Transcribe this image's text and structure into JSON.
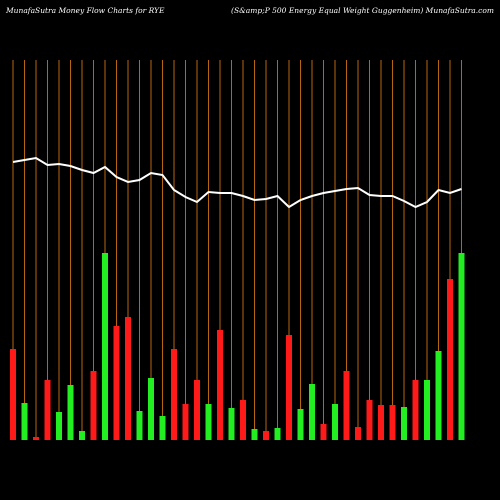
{
  "chart_data": {
    "type": "bar",
    "title": "MunafaSutra  Money Flow  Charts for RYE",
    "subtitle": "(S&amp;P 500  Energy Equal Weight Guggenheim) MunafaSutra.com",
    "ylim": [
      0,
      300
    ],
    "grid": true,
    "grid_color": "#b8650f",
    "series": [
      {
        "name": "money flow",
        "type": "bar",
        "values": [
          91,
          37,
          3,
          60,
          28,
          55,
          9,
          69,
          187,
          114,
          123,
          29,
          62,
          24,
          91,
          36,
          60,
          36,
          110,
          32,
          40,
          11,
          9,
          12,
          105,
          31,
          56,
          16,
          36,
          69,
          13,
          40,
          35,
          35,
          33,
          60,
          60,
          89,
          161,
          187
        ],
        "colors": [
          "#ff1a1a",
          "#22ee22",
          "#ff1a1a",
          "#ff1a1a",
          "#22ee22",
          "#22ee22",
          "#22ee22",
          "#ff1a1a",
          "#22ee22",
          "#ff1a1a",
          "#ff1a1a",
          "#22ee22",
          "#22ee22",
          "#22ee22",
          "#ff1a1a",
          "#ff1a1a",
          "#ff1a1a",
          "#22ee22",
          "#ff1a1a",
          "#22ee22",
          "#ff1a1a",
          "#22ee22",
          "#ff1a1a",
          "#22ee22",
          "#ff1a1a",
          "#22ee22",
          "#22ee22",
          "#ff1a1a",
          "#22ee22",
          "#ff1a1a",
          "#ff1a1a",
          "#ff1a1a",
          "#ff1a1a",
          "#ff1a1a",
          "#22ee22",
          "#ff1a1a",
          "#22ee22",
          "#22ee22",
          "#ff1a1a",
          "#22ee22"
        ]
      },
      {
        "name": "price",
        "type": "line",
        "color": "#ffffff",
        "values": [
          278,
          280,
          282,
          275,
          276,
          274,
          270,
          267,
          273,
          263,
          258,
          260,
          267,
          265,
          250,
          243,
          238,
          248,
          247,
          247,
          244,
          240,
          241,
          244,
          233,
          240,
          244,
          247,
          249,
          251,
          252,
          245,
          244,
          244,
          239,
          233,
          238,
          250,
          247,
          251
        ]
      }
    ]
  }
}
